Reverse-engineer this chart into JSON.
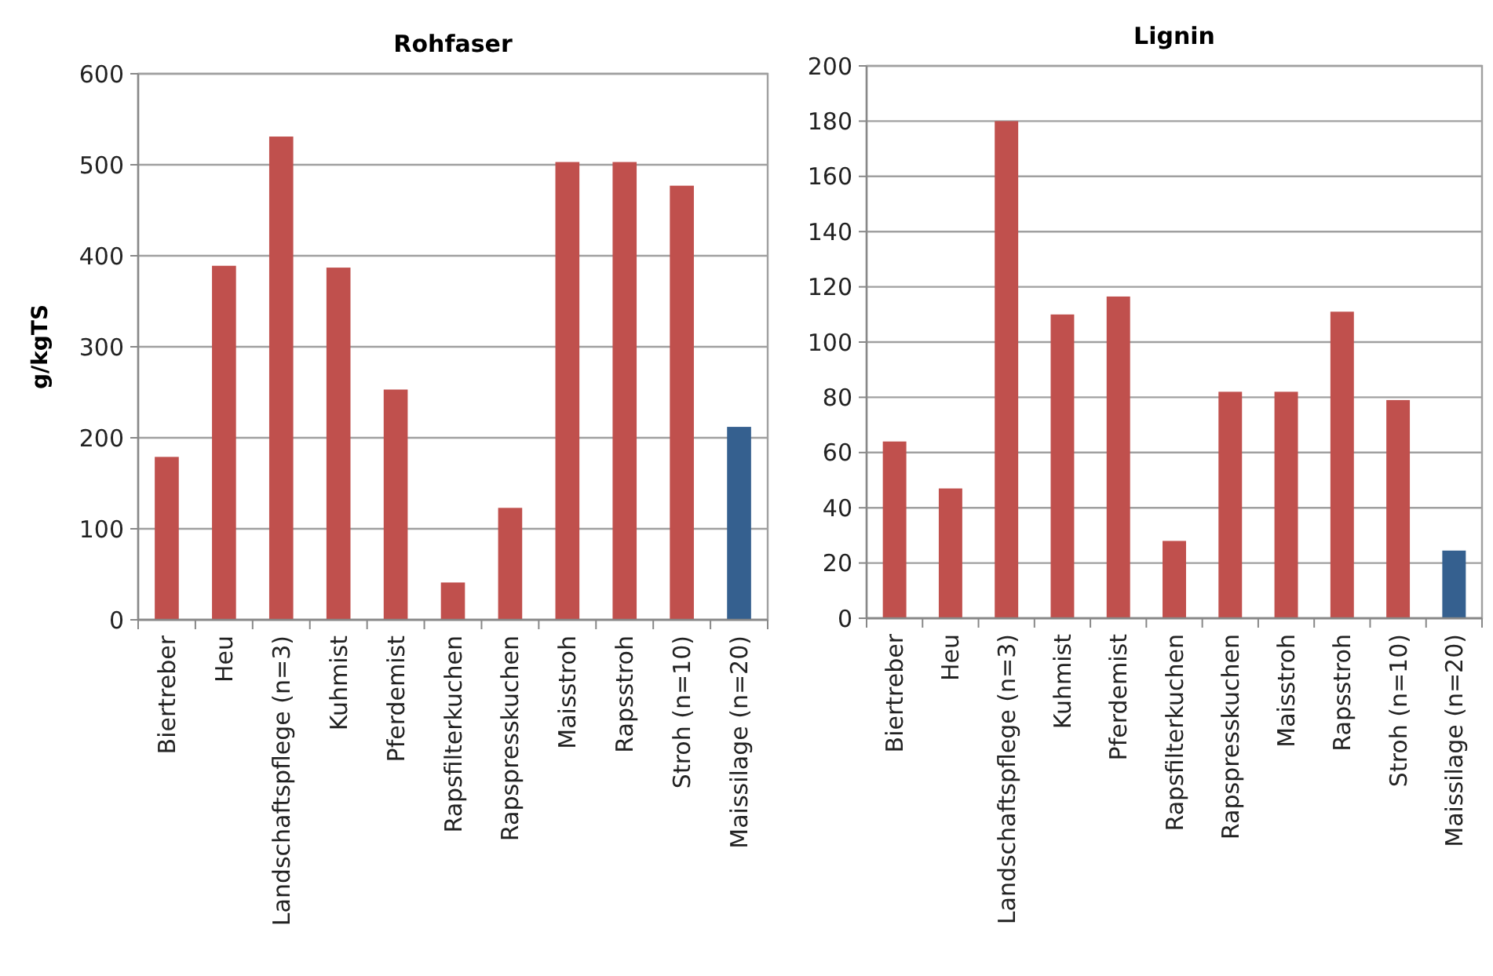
{
  "chart_data": [
    {
      "type": "bar",
      "title": "Rohfaser",
      "ylabel": "g/kgTS",
      "categories": [
        "Biertreber",
        "Heu",
        "Landschaftspflege (n=3)",
        "Kuhmist",
        "Pferdemist",
        "Rapsfilterkuchen",
        "Rapspresskuchen",
        "Maisstroh",
        "Rapsstroh",
        "Stroh (n=10)",
        "Maissilage (n=20)"
      ],
      "values": [
        179,
        389,
        531,
        387,
        253,
        41,
        123,
        503,
        503,
        477,
        212
      ],
      "colors": [
        "#c0504d",
        "#c0504d",
        "#c0504d",
        "#c0504d",
        "#c0504d",
        "#c0504d",
        "#c0504d",
        "#c0504d",
        "#c0504d",
        "#c0504d",
        "#35608f"
      ],
      "ylim": [
        0,
        600
      ],
      "yticks": [
        0,
        100,
        200,
        300,
        400,
        500,
        600
      ],
      "grid": "y"
    },
    {
      "type": "bar",
      "title": "Lignin",
      "categories": [
        "Biertreber",
        "Heu",
        "Landschaftspflege (n=3)",
        "Kuhmist",
        "Pferdemist",
        "Rapsfilterkuchen",
        "Rapspresskuchen",
        "Maisstroh",
        "Rapsstroh",
        "Stroh (n=10)",
        "Maissilage (n=20)"
      ],
      "values": [
        64,
        47,
        180,
        110,
        116.5,
        28,
        82,
        82,
        111,
        79,
        24.5
      ],
      "colors": [
        "#c0504d",
        "#c0504d",
        "#c0504d",
        "#c0504d",
        "#c0504d",
        "#c0504d",
        "#c0504d",
        "#c0504d",
        "#c0504d",
        "#c0504d",
        "#35608f"
      ],
      "ylim": [
        0,
        200
      ],
      "yticks": [
        0,
        20,
        40,
        60,
        80,
        100,
        120,
        140,
        160,
        180,
        200
      ],
      "grid": "y"
    }
  ]
}
